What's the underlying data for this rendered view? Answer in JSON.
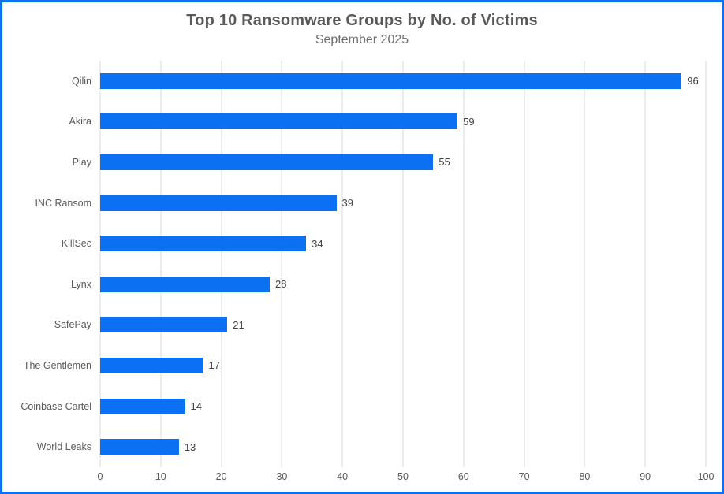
{
  "chart_data": {
    "type": "bar",
    "orientation": "horizontal",
    "title": "Top 10 Ransomware Groups by No. of Victims",
    "subtitle": "September 2025",
    "categories": [
      "Qilin",
      "Akira",
      "Play",
      "INC Ransom",
      "KillSec",
      "Lynx",
      "SafePay",
      "The Gentlemen",
      "Coinbase Cartel",
      "World Leaks"
    ],
    "values": [
      96,
      59,
      55,
      39,
      34,
      28,
      21,
      17,
      14,
      13
    ],
    "xlabel": "",
    "ylabel": "",
    "xlim": [
      0,
      100
    ],
    "xticks": [
      0,
      10,
      20,
      30,
      40,
      50,
      60,
      70,
      80,
      90,
      100
    ],
    "grid": "vertical",
    "legend_position": "none",
    "data_labels": true
  },
  "colors": {
    "bar": "#0b70f1",
    "frame_border": "#0b70f1",
    "gridline": "#d9d9d9",
    "title": "#595959",
    "subtitle": "#6e6e6e",
    "axis_label": "#595959",
    "value_label": "#404040",
    "background": "#ffffff"
  }
}
